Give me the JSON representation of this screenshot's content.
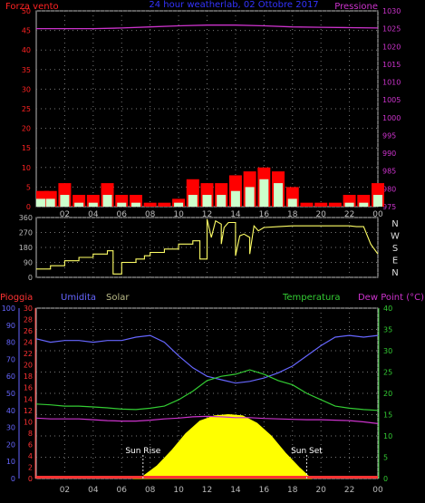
{
  "chart_data": [
    {
      "type": "bar",
      "title": "24 hour weatherlab, 02 Ottobre 2017",
      "left_label": "Forza vento",
      "right_label": "Pressione",
      "x_ticks": [
        "02",
        "04",
        "06",
        "08",
        "10",
        "12",
        "14",
        "16",
        "18",
        "20",
        "22",
        "00"
      ],
      "y_left_ticks": [
        "0",
        "5",
        "10",
        "15",
        "20",
        "25",
        "30",
        "35",
        "40",
        "45",
        "50"
      ],
      "y_right_ticks": [
        "975",
        "980",
        "985",
        "990",
        "995",
        "1000",
        "1005",
        "1010",
        "1015",
        "1020",
        "1025",
        "1030"
      ],
      "ylim_left": [
        0,
        50
      ],
      "ylim_right": [
        975,
        1030
      ],
      "grid": true,
      "colors": {
        "gust": "#ff0000",
        "speed": "#ccffcc",
        "pressure": "#cc33cc",
        "left_axis": "#ff2222",
        "right_axis": "#cc33cc"
      },
      "gust_series": {
        "name": "gust",
        "x": [
          0,
          1,
          2,
          3,
          4,
          5,
          6,
          7,
          8,
          9,
          10,
          11,
          12,
          13,
          14,
          15,
          16,
          17,
          18,
          19,
          20,
          21,
          22,
          23,
          24
        ],
        "values": [
          4,
          4,
          6,
          3,
          3,
          6,
          3,
          3,
          1,
          1,
          2,
          7,
          6,
          6,
          8,
          9,
          10,
          9,
          5,
          1,
          1,
          1,
          3,
          3,
          6
        ]
      },
      "speed_series": {
        "name": "speed",
        "x": [
          0,
          1,
          2,
          3,
          4,
          5,
          6,
          7,
          8,
          9,
          10,
          11,
          12,
          13,
          14,
          15,
          16,
          17,
          18,
          19,
          20,
          21,
          22,
          23,
          24
        ],
        "values": [
          2,
          2,
          3,
          1,
          1,
          3,
          1,
          1,
          0,
          0,
          1,
          3,
          3,
          3,
          4,
          5,
          7,
          6,
          2,
          0,
          0,
          0,
          1,
          1,
          3
        ]
      },
      "pressure_series": {
        "name": "pressure",
        "x": [
          0,
          2,
          4,
          6,
          8,
          10,
          12,
          14,
          16,
          18,
          20,
          22,
          24
        ],
        "values": [
          1025,
          1025,
          1025,
          1025.2,
          1025.5,
          1025.8,
          1026,
          1026,
          1025.8,
          1025.5,
          1025.4,
          1025.3,
          1025.2
        ]
      }
    },
    {
      "type": "line",
      "right_labels": [
        "N",
        "W",
        "S",
        "E",
        "N"
      ],
      "y_ticks": [
        "0",
        "90",
        "180",
        "270",
        "360"
      ],
      "ylim": [
        0,
        360
      ],
      "x_ticks": [
        "02",
        "04",
        "06",
        "08",
        "10",
        "12",
        "14",
        "16",
        "18",
        "20",
        "22",
        "00"
      ],
      "color": "#ffff66",
      "series": [
        {
          "x": [
            0,
            1,
            1,
            2,
            2,
            3,
            3,
            4,
            4,
            5,
            5,
            5.4,
            5.4,
            6,
            6,
            7,
            7,
            7.6,
            7.6,
            8,
            8,
            9,
            9,
            10,
            10,
            11,
            11,
            11.5,
            11.5,
            12,
            12,
            12.3,
            12.6,
            13,
            13,
            13.2,
            13.5,
            14,
            14,
            14.3,
            14.6,
            15,
            15,
            15.3,
            15.6,
            16,
            17,
            18,
            19,
            20,
            21,
            22,
            22.5,
            23,
            23.5,
            24
          ],
          "values": [
            50,
            50,
            70,
            70,
            100,
            100,
            120,
            120,
            140,
            140,
            160,
            160,
            20,
            20,
            90,
            90,
            110,
            110,
            130,
            130,
            150,
            150,
            170,
            170,
            200,
            200,
            220,
            220,
            110,
            110,
            350,
            240,
            340,
            320,
            200,
            300,
            330,
            330,
            130,
            250,
            260,
            240,
            140,
            310,
            280,
            300,
            305,
            310,
            310,
            310,
            310,
            310,
            305,
            305,
            200,
            140
          ]
        }
      ]
    },
    {
      "type": "line",
      "labels": {
        "rain": "Pioggia",
        "humidity": "Umidita",
        "solar": "Solar",
        "temperature": "Temperatura",
        "dewpoint": "Dew Point (°C)"
      },
      "x_ticks": [
        "02",
        "04",
        "06",
        "08",
        "10",
        "12",
        "14",
        "16",
        "18",
        "20",
        "22",
        "00"
      ],
      "y_rain_ticks": [
        "0",
        "2",
        "4",
        "6",
        "8",
        "10",
        "12",
        "14",
        "16",
        "18",
        "20",
        "22",
        "24",
        "26",
        "28",
        "30"
      ],
      "y_humidity_ticks": [
        "0",
        "10",
        "20",
        "30",
        "40",
        "50",
        "60",
        "70",
        "80",
        "90",
        "100"
      ],
      "y_temp_ticks": [
        "0",
        "5",
        "10",
        "15",
        "20",
        "25",
        "30",
        "35",
        "40"
      ],
      "ylim_temp": [
        0,
        40
      ],
      "annotations": [
        {
          "text": "Sun Rise",
          "x": 7.5
        },
        {
          "text": "Sun Set",
          "x": 19
        }
      ],
      "colors": {
        "rain": "#ff3333",
        "humidity": "#6666ff",
        "solar": "#ffff00",
        "temperature": "#33cc33",
        "dewpoint": "#cc33cc"
      },
      "humidity": {
        "x": [
          0,
          1,
          2,
          3,
          4,
          5,
          6,
          7,
          8,
          9,
          10,
          11,
          12,
          13,
          14,
          15,
          16,
          17,
          18,
          19,
          20,
          21,
          22,
          23,
          24
        ],
        "values": [
          82,
          80,
          81,
          81,
          80,
          81,
          81,
          83,
          84,
          80,
          72,
          65,
          60,
          58,
          56,
          57,
          59,
          62,
          66,
          72,
          78,
          83,
          84,
          83,
          84
        ]
      },
      "temperature": {
        "x": [
          0,
          1,
          2,
          3,
          4,
          5,
          6,
          7,
          8,
          9,
          10,
          11,
          12,
          13,
          14,
          15,
          16,
          17,
          18,
          19,
          20,
          21,
          22,
          23,
          24
        ],
        "values": [
          17.5,
          17.3,
          17,
          17,
          16.8,
          16.6,
          16.3,
          16.2,
          16.5,
          17,
          18.5,
          20.5,
          23,
          24,
          24.5,
          25.5,
          24.5,
          23,
          22,
          20,
          18.5,
          17,
          16.5,
          16.2,
          16
        ]
      },
      "dewpoint": {
        "x": [
          0,
          1,
          2,
          3,
          4,
          5,
          6,
          7,
          8,
          9,
          10,
          11,
          12,
          13,
          14,
          15,
          16,
          17,
          18,
          19,
          20,
          21,
          22,
          23,
          24
        ],
        "values": [
          14.2,
          14,
          14,
          14,
          13.8,
          13.6,
          13.5,
          13.5,
          13.7,
          14,
          14.2,
          14.5,
          14.6,
          14.5,
          14.3,
          14.3,
          14.1,
          14,
          13.9,
          13.8,
          13.8,
          13.7,
          13.6,
          13.3,
          12.9
        ]
      },
      "solar": {
        "x": [
          6.8,
          7.5,
          8.5,
          9.5,
          10.5,
          11.5,
          12.5,
          13.5,
          14.5,
          15.5,
          16.5,
          17.5,
          18.5,
          19.3
        ],
        "values": [
          0,
          0.5,
          3,
          6.5,
          10.5,
          13.5,
          14.7,
          15,
          14.7,
          13,
          10,
          6,
          2.5,
          0
        ]
      },
      "rain": {
        "x": [
          0,
          24
        ],
        "values": [
          0,
          0
        ]
      }
    }
  ]
}
